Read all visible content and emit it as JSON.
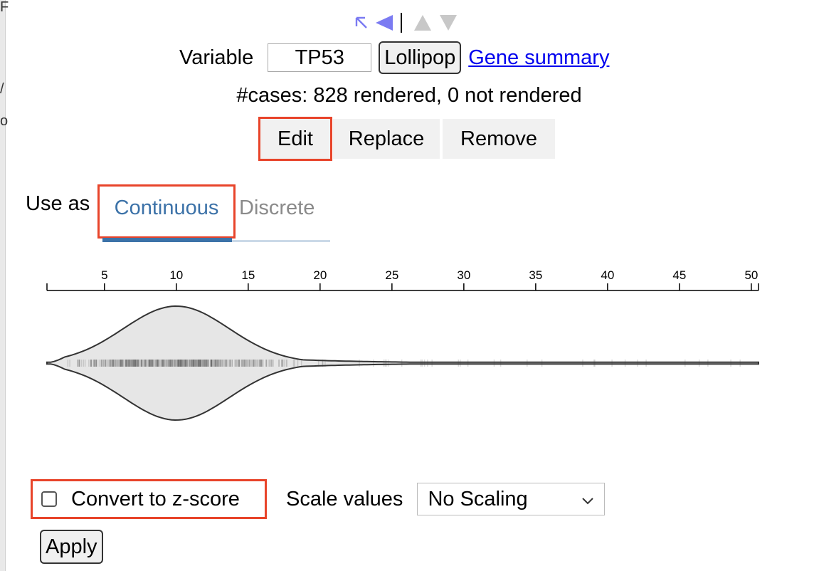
{
  "nav": {
    "icons": [
      "jump-to-start-icon",
      "arrow-left-icon",
      "arrow-up-icon",
      "arrow-down-icon"
    ],
    "accent_color": "#7b7bf2",
    "disabled_color": "#c8c8c8"
  },
  "variable": {
    "label": "Variable",
    "value": "TP53",
    "lollipop_label": "Lollipop",
    "gene_summary_label": "Gene summary"
  },
  "cases_text": "#cases: 828 rendered, 0 not rendered",
  "actions": {
    "edit_label": "Edit",
    "replace_label": "Replace",
    "remove_label": "Remove"
  },
  "use_as": {
    "label": "Use as",
    "continuous_label": "Continuous",
    "discrete_label": "Discrete",
    "selected": "Continuous",
    "selected_color": "#3c72a8",
    "unselected_color": "#8a8a8a"
  },
  "chart_data": {
    "type": "violin",
    "x_ticks": [
      5,
      10,
      15,
      20,
      25,
      30,
      35,
      40,
      45,
      50
    ],
    "xlim": [
      1,
      50.5
    ],
    "fill_color": "#e6e6e6",
    "stroke_color": "#333333"
  },
  "options": {
    "zscore_label": "Convert to z-score",
    "zscore_checked": false,
    "scale_label": "Scale values",
    "scale_selected": "No Scaling",
    "apply_label": "Apply"
  },
  "highlight_color": "#e8442a"
}
